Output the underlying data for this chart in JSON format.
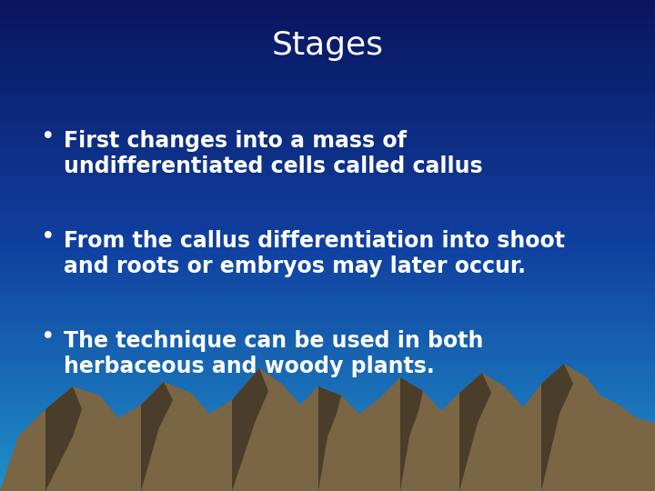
{
  "title": "Stages",
  "title_color": "#FFFFFF",
  "title_fontsize": 26,
  "bullet_points": [
    [
      "First changes into a mass of",
      "undifferentiated cells called callus"
    ],
    [
      "From the callus differentiation into shoot",
      "and roots or embryos may later occur."
    ],
    [
      "The technique can be used in both",
      "herbaceous and woody plants."
    ]
  ],
  "bullet_color": "#FFFFFF",
  "bullet_fontsize": 17,
  "bg_color_top": "#0A1560",
  "bg_color_mid": "#1040A0",
  "bg_color_bot": "#1080C0",
  "mountain_fill_color": "#7A6545",
  "mountain_dark_color": "#4A3D2A",
  "teal_color": "#00D4B8",
  "fig_width": 7.2,
  "fig_height": 5.4
}
